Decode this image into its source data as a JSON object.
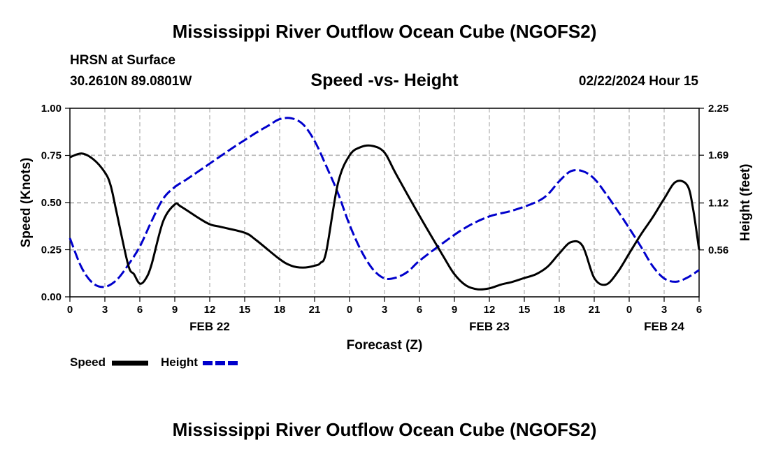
{
  "page": {
    "title": "Mississippi River Outflow Ocean Cube (NGOFS2)",
    "station": "HRSN at Surface",
    "coords": "30.2610N  89.0801W",
    "date": "02/22/2024 Hour 15",
    "footer_title": "Mississippi River Outflow Ocean Cube (NGOFS2)"
  },
  "colors": {
    "speed": "#000000",
    "height": "#0000cc",
    "grid": "#b5b5b5"
  },
  "chart_data": {
    "type": "line",
    "title": "Speed -vs- Height",
    "xlabel": "Forecast (Z)",
    "ylabel": "Speed (Knots)",
    "y2label": "Height (feet)",
    "xlim": [
      0,
      54
    ],
    "ylim": [
      0,
      1
    ],
    "y2lim": [
      0,
      2.25
    ],
    "x_ticks": [
      0,
      3,
      6,
      9,
      12,
      15,
      18,
      21,
      24,
      27,
      30,
      33,
      36,
      39,
      42,
      45,
      48,
      51,
      54
    ],
    "x_tick_labels": [
      "0",
      "3",
      "6",
      "9",
      "12",
      "15",
      "18",
      "21",
      "0",
      "3",
      "6",
      "9",
      "12",
      "15",
      "18",
      "21",
      "0",
      "3",
      "6"
    ],
    "y_ticks": [
      0,
      0.25,
      0.5,
      0.75,
      1.0
    ],
    "y_tick_labels": [
      "0.00",
      "0.25",
      "0.50",
      "0.75",
      "1.00"
    ],
    "y2_ticks": [
      0.56,
      1.12,
      1.69,
      2.25
    ],
    "y2_tick_labels": [
      "0.56",
      "1.12",
      "1.69",
      "2.25"
    ],
    "date_labels": [
      {
        "x": 12,
        "label": "FEB 22"
      },
      {
        "x": 36,
        "label": "FEB 23"
      },
      {
        "x": 51,
        "label": "FEB 24"
      }
    ],
    "grid": true,
    "legend": [
      {
        "name": "Speed",
        "style": "solid"
      },
      {
        "name": "Height",
        "style": "dashed"
      }
    ],
    "series": [
      {
        "name": "Speed",
        "axis": "left",
        "unit": "Knots",
        "x": [
          0,
          1,
          2,
          3,
          3.5,
          4,
          5,
          5.5,
          6,
          6.5,
          7,
          8,
          9,
          9.5,
          11,
          12,
          13,
          15,
          16,
          18,
          19,
          20,
          21,
          21.5,
          22,
          23,
          24,
          25,
          26,
          27,
          28,
          30,
          32,
          33,
          34,
          35,
          36,
          37,
          38,
          39,
          40,
          41,
          42,
          43,
          44,
          45,
          46,
          47,
          48,
          49,
          50,
          51,
          52,
          53,
          53.5,
          54
        ],
        "values": [
          0.74,
          0.76,
          0.73,
          0.66,
          0.59,
          0.45,
          0.17,
          0.12,
          0.07,
          0.095,
          0.17,
          0.4,
          0.49,
          0.48,
          0.42,
          0.385,
          0.37,
          0.34,
          0.3,
          0.2,
          0.165,
          0.155,
          0.165,
          0.18,
          0.24,
          0.6,
          0.75,
          0.795,
          0.8,
          0.765,
          0.65,
          0.43,
          0.22,
          0.12,
          0.06,
          0.04,
          0.045,
          0.065,
          0.08,
          0.1,
          0.12,
          0.16,
          0.23,
          0.29,
          0.27,
          0.1,
          0.065,
          0.13,
          0.23,
          0.33,
          0.42,
          0.52,
          0.61,
          0.59,
          0.46,
          0.25
        ]
      },
      {
        "name": "Height",
        "axis": "right",
        "unit": "feet",
        "x": [
          0,
          1,
          2,
          3,
          4,
          5,
          6,
          7,
          8,
          9,
          10,
          12,
          14,
          15,
          16,
          17,
          18,
          19,
          20,
          21,
          22,
          23,
          24,
          25,
          26,
          27,
          28,
          29,
          30,
          32,
          34,
          36,
          38,
          40,
          41,
          42,
          43,
          44,
          45,
          46,
          47,
          48,
          49,
          50,
          51,
          52,
          53,
          54
        ],
        "values": [
          0.7,
          0.35,
          0.16,
          0.12,
          0.2,
          0.38,
          0.6,
          0.9,
          1.17,
          1.31,
          1.4,
          1.59,
          1.78,
          1.87,
          1.96,
          2.04,
          2.12,
          2.13,
          2.06,
          1.86,
          1.56,
          1.24,
          0.86,
          0.55,
          0.33,
          0.22,
          0.23,
          0.3,
          0.43,
          0.64,
          0.83,
          0.96,
          1.03,
          1.13,
          1.22,
          1.38,
          1.5,
          1.5,
          1.41,
          1.23,
          1.03,
          0.82,
          0.6,
          0.37,
          0.22,
          0.18,
          0.23,
          0.32
        ]
      }
    ]
  }
}
